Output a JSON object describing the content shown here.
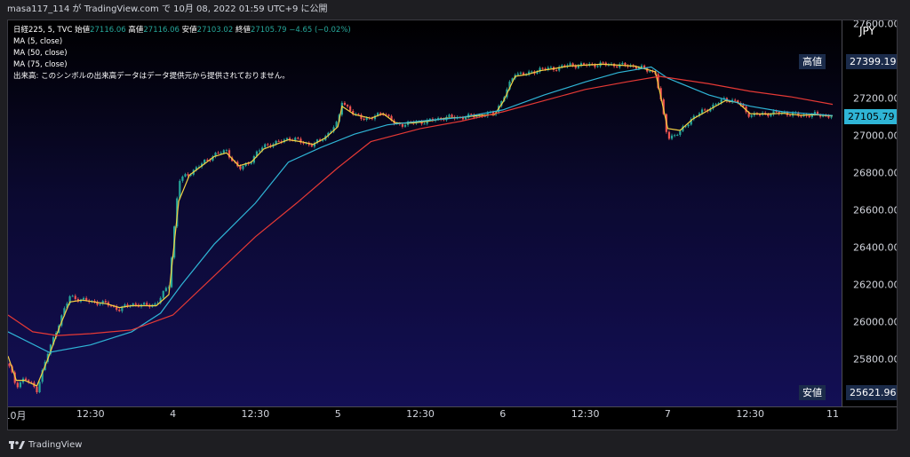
{
  "header": {
    "publisher_line": "masa117_114 が TradingView.com で 10月 08, 2022 01:59 UTC+9 に公開"
  },
  "legend": {
    "symbol": "日経225, 5, TVC",
    "open_label": "始値",
    "open_value": "27116.06",
    "high_label": "高値",
    "high_value": "27116.06",
    "low_label": "安値",
    "low_value": "27103.02",
    "close_label": "終値",
    "close_value": "27105.79",
    "change": "−4.65 (−0.02%)",
    "ma1": "MA (5, close)",
    "ma2": "MA (50, close)",
    "ma3": "MA (75, close)",
    "volume_note": "出来高: このシンボルの出来高データはデータ提供元から提供されておりません。"
  },
  "axis": {
    "currency": "JPY",
    "high_tag_label": "高値",
    "high_tag_value": "27399.19",
    "last_value": "27105.79",
    "low_tag_label": "安値",
    "low_tag_value": "25621.96"
  },
  "footer": {
    "brand": "TradingView"
  },
  "colors": {
    "up": "#26a69a",
    "down": "#ef5350",
    "ma5": "#f5d142",
    "ma50": "#2fb5d6",
    "ma75": "#e53935",
    "last_price_bg": "#2fb5d6"
  },
  "chart_data": {
    "type": "line",
    "title": "",
    "symbol": "日経225",
    "interval": "5",
    "source": "TVC",
    "ylim": [
      25550,
      27620
    ],
    "yticks": [
      "27600.00",
      "27400.00",
      "27200.00",
      "27000.00",
      "26800.00",
      "26600.00",
      "26400.00",
      "26200.00",
      "26000.00",
      "25800.00"
    ],
    "ytick_values": [
      27600,
      27400,
      27200,
      27000,
      26800,
      26600,
      26400,
      26200,
      26000,
      25800
    ],
    "xticks": [
      "10月",
      "12:30",
      "4",
      "12:30",
      "5",
      "12:30",
      "6",
      "12:30",
      "7",
      "12:30",
      "11"
    ],
    "xtick_pos": [
      0.0,
      0.1,
      0.2,
      0.3,
      0.4,
      0.5,
      0.6,
      0.7,
      0.8,
      0.9,
      1.0
    ],
    "grid": false,
    "legend": "top-left",
    "price_path": [
      [
        0.0,
        25780
      ],
      [
        0.01,
        25660
      ],
      [
        0.02,
        25700
      ],
      [
        0.035,
        25640
      ],
      [
        0.048,
        25830
      ],
      [
        0.062,
        26000
      ],
      [
        0.075,
        26140
      ],
      [
        0.09,
        26120
      ],
      [
        0.105,
        26110
      ],
      [
        0.12,
        26100
      ],
      [
        0.135,
        26070
      ],
      [
        0.15,
        26100
      ],
      [
        0.165,
        26090
      ],
      [
        0.18,
        26100
      ],
      [
        0.195,
        26200
      ],
      [
        0.207,
        26760
      ],
      [
        0.22,
        26800
      ],
      [
        0.235,
        26850
      ],
      [
        0.25,
        26900
      ],
      [
        0.265,
        26920
      ],
      [
        0.28,
        26820
      ],
      [
        0.295,
        26870
      ],
      [
        0.31,
        26950
      ],
      [
        0.325,
        26960
      ],
      [
        0.34,
        26990
      ],
      [
        0.355,
        26970
      ],
      [
        0.37,
        26950
      ],
      [
        0.385,
        27000
      ],
      [
        0.4,
        27070
      ],
      [
        0.405,
        27190
      ],
      [
        0.42,
        27110
      ],
      [
        0.44,
        27090
      ],
      [
        0.455,
        27130
      ],
      [
        0.47,
        27060
      ],
      [
        0.49,
        27070
      ],
      [
        0.51,
        27080
      ],
      [
        0.53,
        27100
      ],
      [
        0.55,
        27100
      ],
      [
        0.57,
        27110
      ],
      [
        0.59,
        27120
      ],
      [
        0.6,
        27200
      ],
      [
        0.615,
        27340
      ],
      [
        0.63,
        27330
      ],
      [
        0.645,
        27360
      ],
      [
        0.66,
        27360
      ],
      [
        0.68,
        27380
      ],
      [
        0.7,
        27380
      ],
      [
        0.72,
        27385
      ],
      [
        0.74,
        27380
      ],
      [
        0.76,
        27375
      ],
      [
        0.785,
        27340
      ],
      [
        0.8,
        26990
      ],
      [
        0.815,
        27020
      ],
      [
        0.83,
        27100
      ],
      [
        0.85,
        27150
      ],
      [
        0.87,
        27200
      ],
      [
        0.885,
        27180
      ],
      [
        0.9,
        27110
      ],
      [
        0.92,
        27120
      ],
      [
        0.94,
        27125
      ],
      [
        0.96,
        27110
      ],
      [
        0.98,
        27115
      ],
      [
        1.0,
        27105
      ]
    ],
    "series": [
      {
        "name": "MA (5, close)",
        "values": [
          [
            0.0,
            25820
          ],
          [
            0.01,
            25690
          ],
          [
            0.02,
            25690
          ],
          [
            0.035,
            25660
          ],
          [
            0.048,
            25800
          ],
          [
            0.062,
            25970
          ],
          [
            0.075,
            26110
          ],
          [
            0.09,
            26120
          ],
          [
            0.105,
            26110
          ],
          [
            0.12,
            26100
          ],
          [
            0.135,
            26080
          ],
          [
            0.15,
            26090
          ],
          [
            0.165,
            26090
          ],
          [
            0.18,
            26090
          ],
          [
            0.195,
            26150
          ],
          [
            0.207,
            26650
          ],
          [
            0.22,
            26790
          ],
          [
            0.235,
            26840
          ],
          [
            0.25,
            26890
          ],
          [
            0.265,
            26910
          ],
          [
            0.28,
            26840
          ],
          [
            0.295,
            26860
          ],
          [
            0.31,
            26930
          ],
          [
            0.325,
            26955
          ],
          [
            0.34,
            26980
          ],
          [
            0.355,
            26970
          ],
          [
            0.37,
            26955
          ],
          [
            0.385,
            26990
          ],
          [
            0.4,
            27050
          ],
          [
            0.405,
            27160
          ],
          [
            0.42,
            27115
          ],
          [
            0.44,
            27095
          ],
          [
            0.455,
            27120
          ],
          [
            0.47,
            27070
          ],
          [
            0.49,
            27070
          ],
          [
            0.51,
            27080
          ],
          [
            0.53,
            27095
          ],
          [
            0.55,
            27100
          ],
          [
            0.57,
            27110
          ],
          [
            0.59,
            27115
          ],
          [
            0.6,
            27180
          ],
          [
            0.615,
            27320
          ],
          [
            0.63,
            27330
          ],
          [
            0.645,
            27350
          ],
          [
            0.66,
            27360
          ],
          [
            0.68,
            27375
          ],
          [
            0.7,
            27380
          ],
          [
            0.72,
            27385
          ],
          [
            0.74,
            27380
          ],
          [
            0.76,
            27375
          ],
          [
            0.785,
            27345
          ],
          [
            0.8,
            27040
          ],
          [
            0.815,
            27030
          ],
          [
            0.83,
            27090
          ],
          [
            0.85,
            27140
          ],
          [
            0.87,
            27190
          ],
          [
            0.885,
            27180
          ],
          [
            0.9,
            27120
          ],
          [
            0.92,
            27118
          ],
          [
            0.94,
            27122
          ],
          [
            0.96,
            27112
          ],
          [
            0.98,
            27114
          ],
          [
            1.0,
            27108
          ]
        ]
      },
      {
        "name": "MA (50, close)",
        "values": [
          [
            0.0,
            25950
          ],
          [
            0.05,
            25840
          ],
          [
            0.1,
            25880
          ],
          [
            0.15,
            25950
          ],
          [
            0.185,
            26050
          ],
          [
            0.21,
            26200
          ],
          [
            0.25,
            26420
          ],
          [
            0.3,
            26640
          ],
          [
            0.34,
            26860
          ],
          [
            0.38,
            26940
          ],
          [
            0.42,
            27010
          ],
          [
            0.46,
            27060
          ],
          [
            0.5,
            27080
          ],
          [
            0.55,
            27100
          ],
          [
            0.6,
            27140
          ],
          [
            0.65,
            27220
          ],
          [
            0.7,
            27290
          ],
          [
            0.74,
            27340
          ],
          [
            0.78,
            27370
          ],
          [
            0.8,
            27310
          ],
          [
            0.85,
            27220
          ],
          [
            0.9,
            27160
          ],
          [
            0.94,
            27130
          ],
          [
            1.0,
            27110
          ]
        ]
      },
      {
        "name": "MA (75, close)",
        "values": [
          [
            0.0,
            26040
          ],
          [
            0.03,
            25950
          ],
          [
            0.06,
            25930
          ],
          [
            0.1,
            25940
          ],
          [
            0.15,
            25960
          ],
          [
            0.2,
            26040
          ],
          [
            0.25,
            26250
          ],
          [
            0.3,
            26460
          ],
          [
            0.35,
            26640
          ],
          [
            0.4,
            26830
          ],
          [
            0.44,
            26970
          ],
          [
            0.5,
            27040
          ],
          [
            0.55,
            27080
          ],
          [
            0.6,
            27130
          ],
          [
            0.65,
            27190
          ],
          [
            0.7,
            27250
          ],
          [
            0.75,
            27290
          ],
          [
            0.79,
            27320
          ],
          [
            0.85,
            27280
          ],
          [
            0.9,
            27240
          ],
          [
            0.95,
            27210
          ],
          [
            1.0,
            27170
          ]
        ]
      }
    ]
  }
}
